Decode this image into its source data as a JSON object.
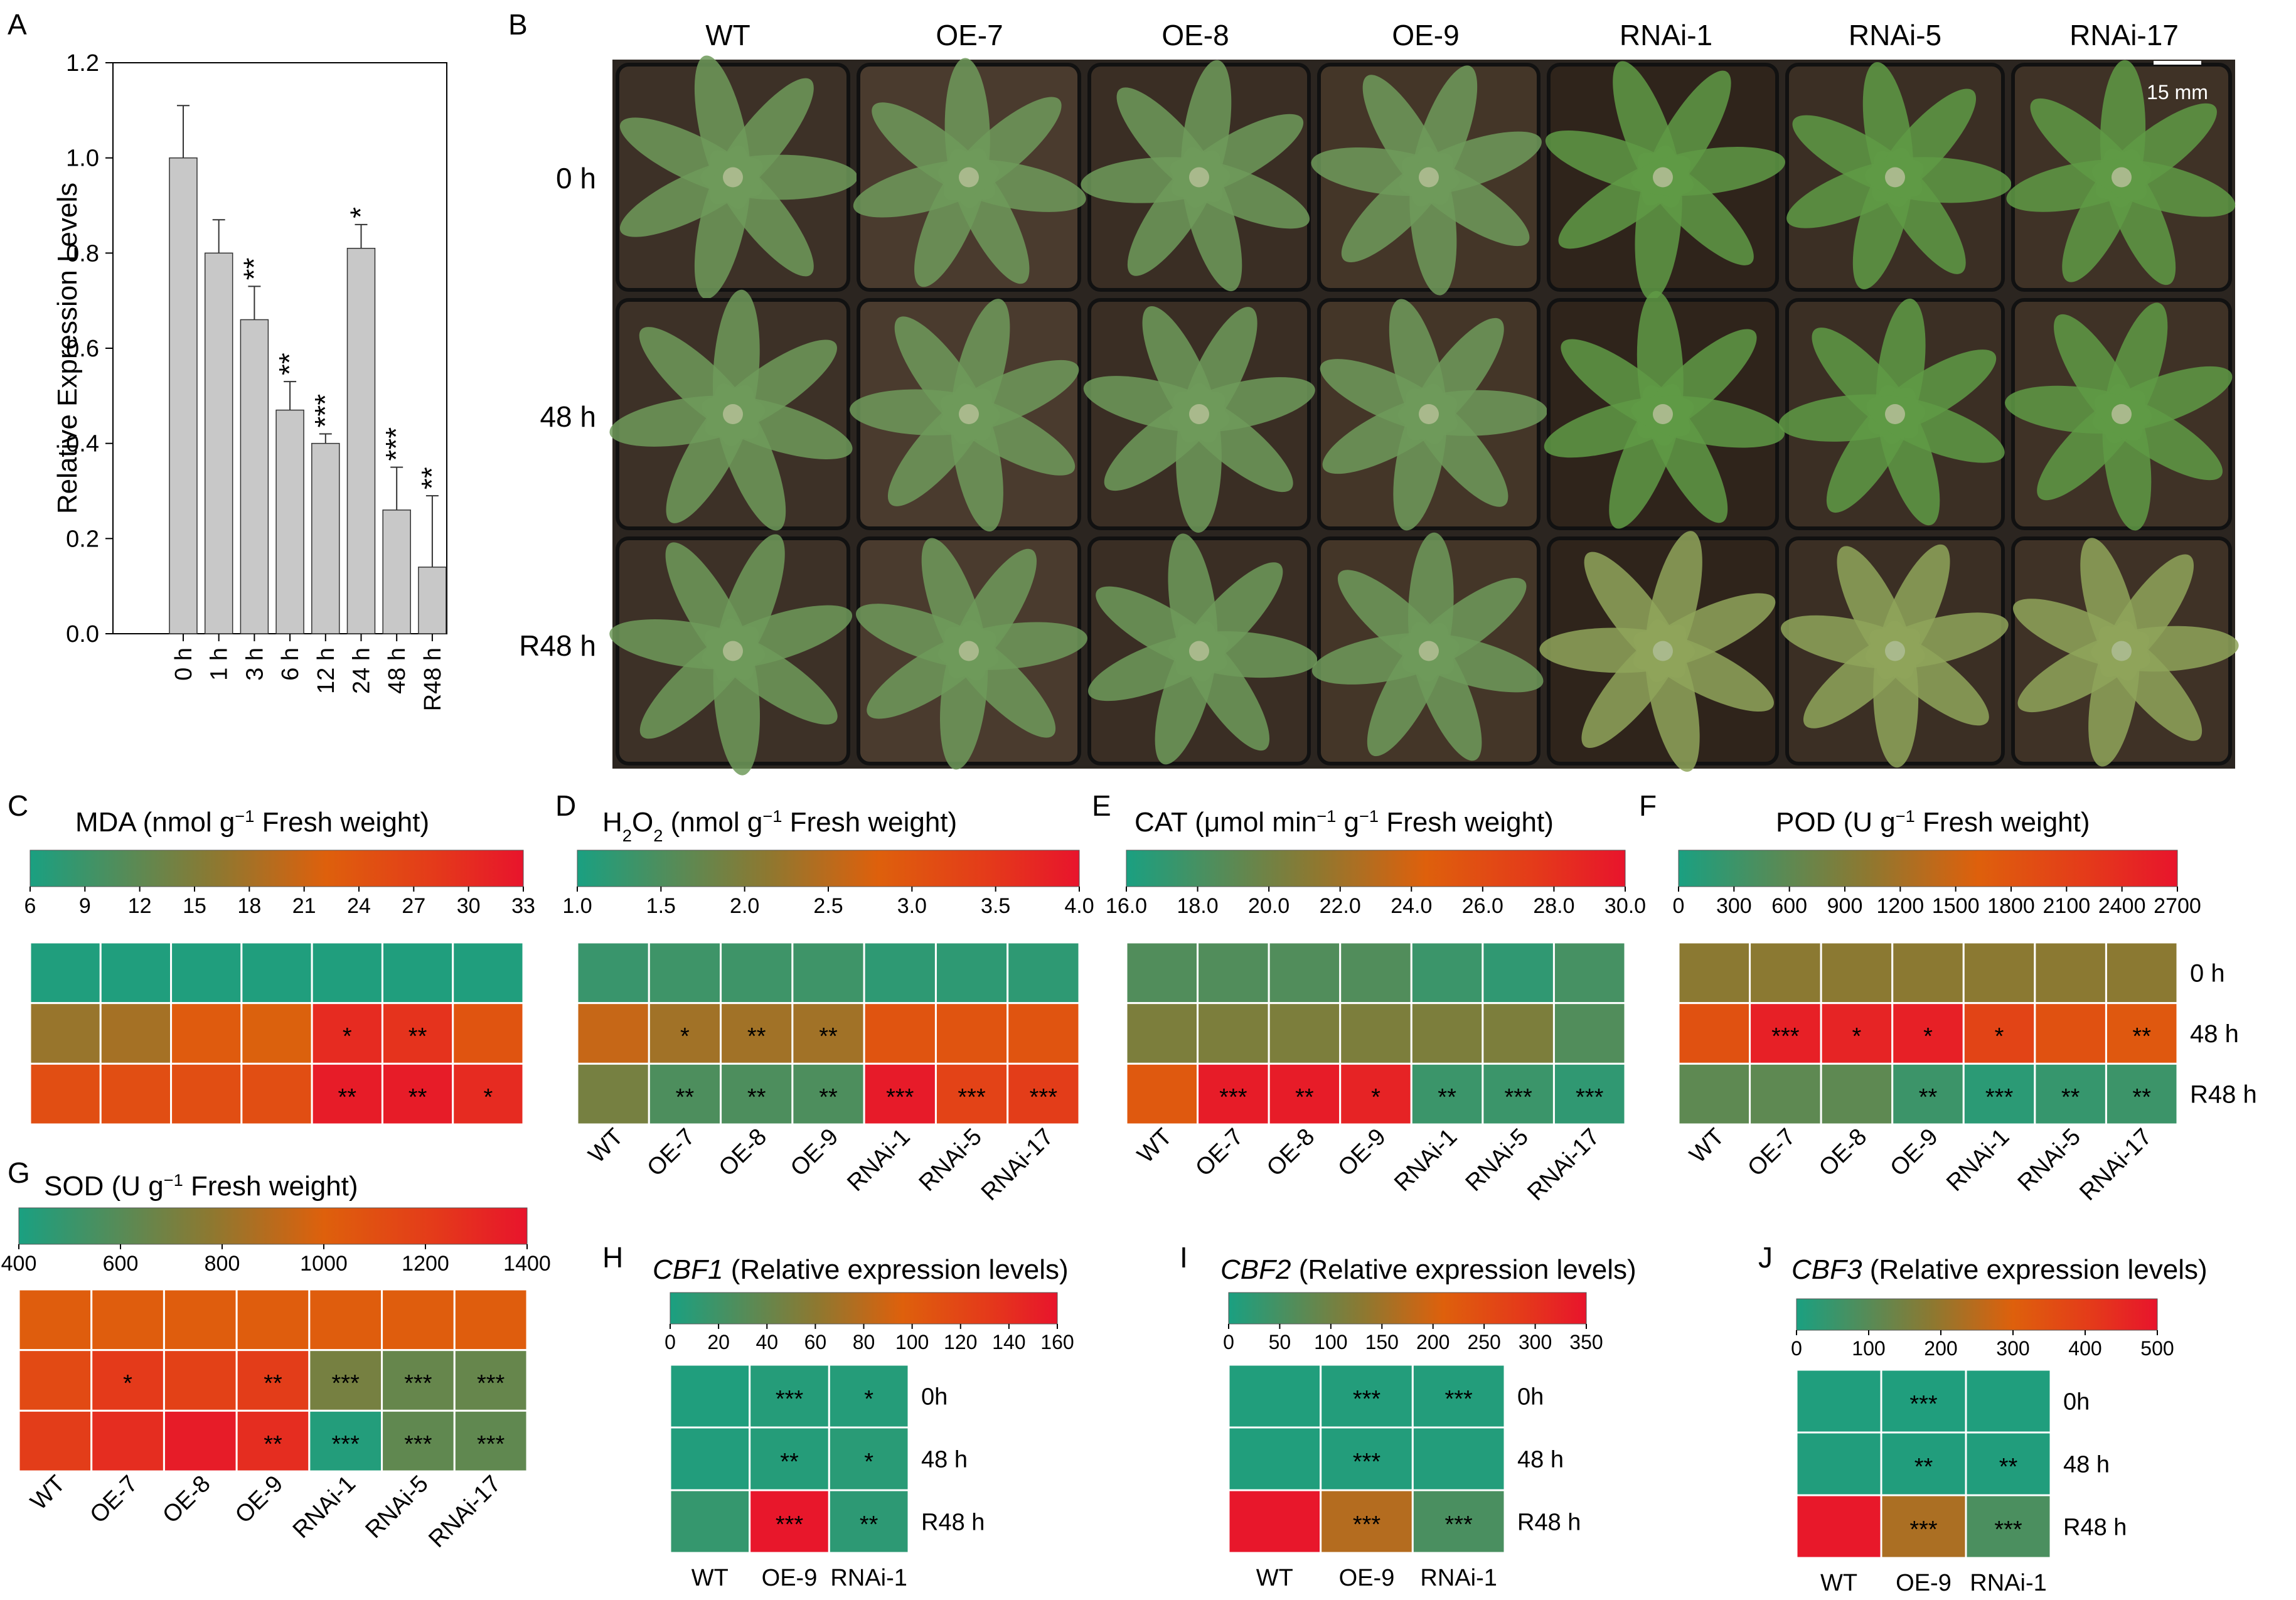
{
  "panel_letters": {
    "A": "A",
    "B": "B",
    "C": "C",
    "D": "D",
    "E": "E",
    "F": "F",
    "G": "G",
    "H": "H",
    "I": "I",
    "J": "J"
  },
  "chart_data": [
    {
      "panel": "A",
      "type": "bar",
      "ylabel": "Relative Expression Levels",
      "xlabel": "",
      "ylim": [
        0,
        1.2
      ],
      "yticks": [
        "0.0",
        "0.2",
        "0.4",
        "0.6",
        "0.8",
        "1.0",
        "1.2"
      ],
      "categories": [
        "0 h",
        "1 h",
        "3 h",
        "6 h",
        "12 h",
        "24 h",
        "48 h",
        "R48 h"
      ],
      "values": [
        1.0,
        0.8,
        0.66,
        0.47,
        0.4,
        0.81,
        0.26,
        0.14
      ],
      "errors": [
        0.11,
        0.07,
        0.07,
        0.06,
        0.02,
        0.05,
        0.09,
        0.15
      ],
      "significance": [
        "",
        "",
        "**",
        "**",
        "***",
        "*",
        "***",
        "**"
      ],
      "bar_color": "#c8c8c8"
    },
    {
      "panel": "B",
      "type": "image",
      "columns": [
        "WT",
        "OE-7",
        "OE-8",
        "OE-9",
        "RNAi-1",
        "RNAi-5",
        "RNAi-17"
      ],
      "rows": [
        "0 h",
        "48 h",
        "R48 h"
      ],
      "scale_bar": "15 mm"
    },
    {
      "panel": "C",
      "type": "heatmap",
      "title_parts": [
        [
          "MDA (nmol g",
          ""
        ],
        [
          "−1",
          "sup"
        ],
        [
          " Fresh weight)",
          ""
        ]
      ],
      "colorbar_ticks": [
        "6",
        "9",
        "12",
        "15",
        "18",
        "21",
        "24",
        "27",
        "30",
        "33"
      ],
      "vmin": 6,
      "vmax": 33,
      "values": [
        [
          6.5,
          6.5,
          6.5,
          6.5,
          6.5,
          6.5,
          6.5
        ],
        [
          17,
          18,
          23,
          22,
          30,
          29,
          24
        ],
        [
          25,
          25,
          25,
          25,
          32,
          32,
          30
        ]
      ],
      "significance": [
        [
          "",
          "",
          "",
          "",
          "",
          "",
          ""
        ],
        [
          "",
          "",
          "",
          "",
          "*",
          "**",
          ""
        ],
        [
          "",
          "",
          "",
          "",
          "**",
          "**",
          "*"
        ]
      ]
    },
    {
      "panel": "D",
      "type": "heatmap",
      "title_parts": [
        [
          "H",
          ""
        ],
        [
          "2",
          "sub"
        ],
        [
          "O",
          ""
        ],
        [
          "2",
          "sub"
        ],
        [
          " (nmol g",
          ""
        ],
        [
          "−1",
          "sup"
        ],
        [
          " Fresh weight)",
          ""
        ]
      ],
      "colorbar_ticks": [
        "1.0",
        "1.5",
        "2.0",
        "2.5",
        "3.0",
        "3.5",
        "4.0"
      ],
      "vmin": 1.0,
      "vmax": 4.0,
      "columns": [
        "WT",
        "OE-7",
        "OE-8",
        "OE-9",
        "RNAi-1",
        "RNAi-5",
        "RNAi-17"
      ],
      "values": [
        [
          1.3,
          1.35,
          1.35,
          1.35,
          1.2,
          1.2,
          1.2
        ],
        [
          2.6,
          2.3,
          2.3,
          2.3,
          3.0,
          3.0,
          3.0
        ],
        [
          1.9,
          1.5,
          1.5,
          1.5,
          3.9,
          3.3,
          3.4
        ]
      ],
      "significance": [
        [
          "",
          "",
          "",
          "",
          "",
          "",
          ""
        ],
        [
          "",
          "*",
          "**",
          "**",
          "",
          "",
          ""
        ],
        [
          "",
          "**",
          "**",
          "**",
          "***",
          "***",
          "***"
        ]
      ]
    },
    {
      "panel": "E",
      "type": "heatmap",
      "title_parts": [
        [
          "CAT (μmol min",
          ""
        ],
        [
          "−1",
          "sup"
        ],
        [
          " g",
          ""
        ],
        [
          "−1",
          "sup"
        ],
        [
          " Fresh weight)",
          ""
        ]
      ],
      "colorbar_ticks": [
        "16.0",
        "18.0",
        "20.0",
        "22.0",
        "24.0",
        "26.0",
        "28.0",
        "30.0"
      ],
      "vmin": 16.0,
      "vmax": 30.0,
      "columns": [
        "WT",
        "OE-7",
        "OE-8",
        "OE-9",
        "RNAi-1",
        "RNAi-5",
        "RNAi-17"
      ],
      "values": [
        [
          18.5,
          18.5,
          18.5,
          18.5,
          17.5,
          17.0,
          18.0
        ],
        [
          20.5,
          20.5,
          20.5,
          20.5,
          20.5,
          20.5,
          18.5
        ],
        [
          25.0,
          29.5,
          29.5,
          29.0,
          17.5,
          17.5,
          17.0
        ]
      ],
      "significance": [
        [
          "",
          "",
          "",
          "",
          "",
          "",
          ""
        ],
        [
          "",
          "",
          "",
          "",
          "",
          "",
          ""
        ],
        [
          "",
          "***",
          "**",
          "*",
          "**",
          "***",
          "***"
        ]
      ]
    },
    {
      "panel": "F",
      "type": "heatmap",
      "title_parts": [
        [
          "POD (U g",
          ""
        ],
        [
          "−1",
          "sup"
        ],
        [
          " Fresh weight)",
          ""
        ]
      ],
      "colorbar_ticks": [
        "0",
        "300",
        "600",
        "900",
        "1200",
        "1500",
        "1800",
        "2100",
        "2400",
        "2700"
      ],
      "vmin": 0,
      "vmax": 2700,
      "columns": [
        "WT",
        "OE-7",
        "OE-8",
        "OE-9",
        "RNAi-1",
        "RNAi-5",
        "RNAi-17"
      ],
      "rows": [
        "0 h",
        "48 h",
        "R48 h"
      ],
      "values": [
        [
          1000,
          1000,
          1000,
          1000,
          1000,
          1000,
          1000
        ],
        [
          1850,
          2550,
          2500,
          2550,
          2050,
          1850,
          1750
        ],
        [
          600,
          600,
          600,
          300,
          150,
          250,
          300
        ]
      ],
      "significance": [
        [
          "",
          "",
          "",
          "",
          "",
          "",
          ""
        ],
        [
          "",
          "***",
          "*",
          "*",
          "*",
          "",
          "**"
        ],
        [
          "",
          "",
          "",
          "**",
          "***",
          "**",
          "**"
        ]
      ]
    },
    {
      "panel": "G",
      "type": "heatmap",
      "title_parts": [
        [
          "SOD (U g",
          ""
        ],
        [
          "−1",
          "sup"
        ],
        [
          " Fresh weight)",
          ""
        ]
      ],
      "colorbar_ticks": [
        "400",
        "600",
        "800",
        "1000",
        "1200",
        "1400"
      ],
      "vmin": 400,
      "vmax": 1400,
      "columns": [
        "WT",
        "OE-7",
        "OE-8",
        "OE-9",
        "RNAi-1",
        "RNAi-5",
        "RNAi-17"
      ],
      "values": [
        [
          1020,
          1020,
          1020,
          1020,
          1020,
          1020,
          1020
        ],
        [
          1130,
          1220,
          1180,
          1200,
          700,
          650,
          650
        ],
        [
          1200,
          1280,
          1360,
          1280,
          430,
          630,
          630
        ]
      ],
      "significance": [
        [
          "",
          "",
          "",
          "",
          "",
          "",
          ""
        ],
        [
          "",
          "*",
          "",
          "**",
          "***",
          "***",
          "***"
        ],
        [
          "",
          "",
          "",
          "**",
          "***",
          "***",
          "***"
        ]
      ]
    },
    {
      "panel": "H",
      "type": "heatmap",
      "title_parts": [
        [
          "CBF1",
          "i"
        ],
        [
          " (Relative expression levels)",
          ""
        ]
      ],
      "colorbar_ticks": [
        "0",
        "20",
        "40",
        "60",
        "80",
        "100",
        "120",
        "140",
        "160"
      ],
      "vmin": 0,
      "vmax": 160,
      "columns": [
        "WT",
        "OE-9",
        "RNAi-1"
      ],
      "rows": [
        "0h",
        "48 h",
        "R48 h"
      ],
      "values": [
        [
          3,
          6,
          6
        ],
        [
          4,
          6,
          8
        ],
        [
          14,
          158,
          10
        ]
      ],
      "significance": [
        [
          "",
          "***",
          "*"
        ],
        [
          "",
          "**",
          "*"
        ],
        [
          "",
          "***",
          "**"
        ]
      ]
    },
    {
      "panel": "I",
      "type": "heatmap",
      "title_parts": [
        [
          "CBF2",
          "i"
        ],
        [
          " (Relative expression levels)",
          ""
        ]
      ],
      "colorbar_ticks": [
        "0",
        "50",
        "100",
        "150",
        "200",
        "250",
        "300",
        "350"
      ],
      "vmin": 0,
      "vmax": 350,
      "columns": [
        "WT",
        "OE-9",
        "RNAi-1"
      ],
      "rows": [
        "0h",
        "48 h",
        "R48 h"
      ],
      "values": [
        [
          8,
          10,
          10
        ],
        [
          8,
          10,
          10
        ],
        [
          345,
          170,
          55
        ]
      ],
      "significance": [
        [
          "",
          "***",
          "***"
        ],
        [
          "",
          "***",
          ""
        ],
        [
          "",
          "***",
          "***"
        ]
      ]
    },
    {
      "panel": "J",
      "type": "heatmap",
      "title_parts": [
        [
          "CBF3",
          "i"
        ],
        [
          " (Relative expression levels)",
          ""
        ]
      ],
      "colorbar_ticks": [
        "0",
        "100",
        "200",
        "300",
        "400",
        "500"
      ],
      "vmin": 0,
      "vmax": 500,
      "columns": [
        "WT",
        "OE-9",
        "RNAi-1"
      ],
      "rows": [
        "0h",
        "48 h",
        "R48 h"
      ],
      "values": [
        [
          10,
          10,
          10
        ],
        [
          12,
          12,
          12
        ],
        [
          490,
          230,
          80
        ]
      ],
      "significance": [
        [
          "",
          "***",
          ""
        ],
        [
          "",
          "**",
          "**"
        ],
        [
          "",
          "***",
          "***"
        ]
      ]
    }
  ]
}
